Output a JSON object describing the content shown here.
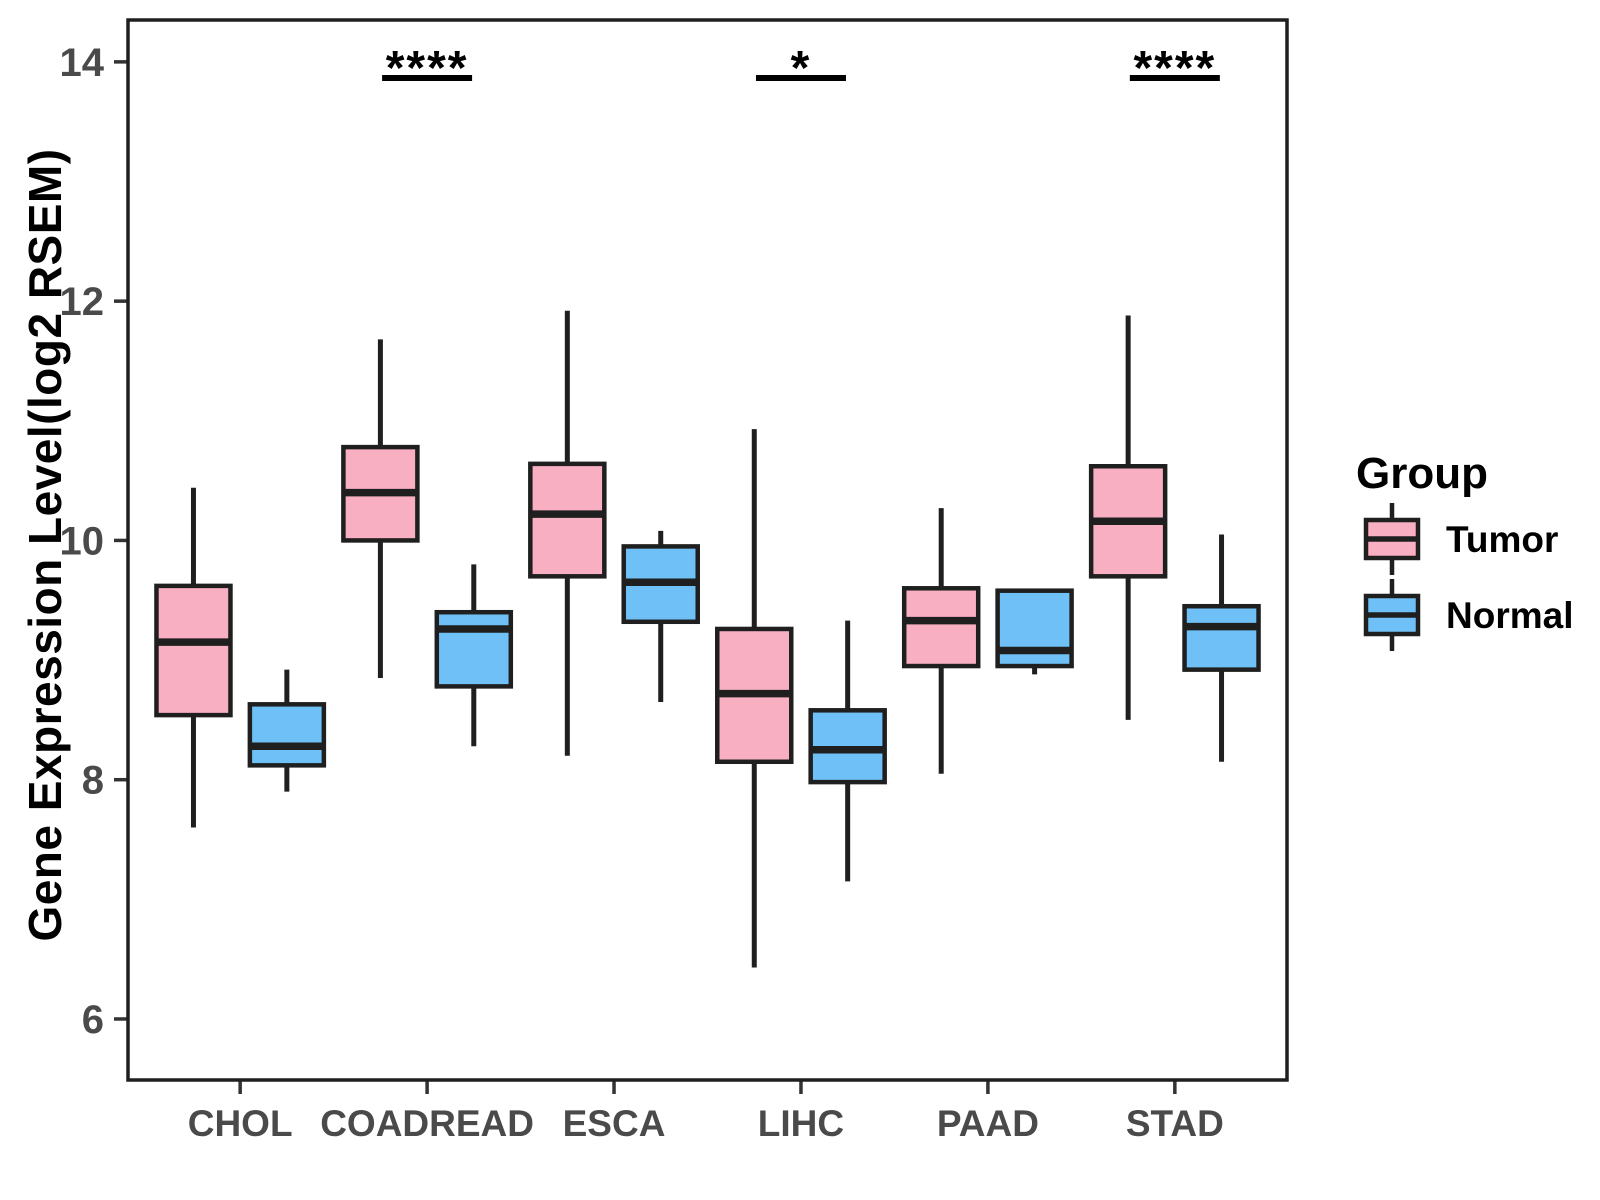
{
  "y_axis": {
    "title": "Gene Expression Level(log2 RSEM)",
    "ticks": [
      14,
      12,
      10,
      8,
      6
    ]
  },
  "x_axis": {
    "categories": [
      "CHOL",
      "COADREAD",
      "ESCA",
      "LIHC",
      "PAAD",
      "STAD"
    ]
  },
  "legend": {
    "title": "Group",
    "items": [
      {
        "label": "Tumor",
        "color": "#F9AFC2"
      },
      {
        "label": "Normal",
        "color": "#6FC0F7"
      }
    ]
  },
  "style": {
    "box_border": "#1F1F1F",
    "panel_border": "#1F1F1F",
    "tick_mark_color": "#333333",
    "tick_label_color": "#4A4A4A",
    "axis_title_color": "#000000",
    "annotation_color": "#000000",
    "background": "#FFFFFF"
  },
  "chart_data": {
    "type": "boxplot",
    "title": "",
    "xlabel": "",
    "ylabel": "Gene Expression Level(log2 RSEM)",
    "categories": [
      "CHOL",
      "COADREAD",
      "ESCA",
      "LIHC",
      "PAAD",
      "STAD"
    ],
    "ylim": [
      5.49,
      14.35
    ],
    "yticks": [
      6,
      8,
      10,
      12,
      14
    ],
    "grid": false,
    "legend_position": "right",
    "series": [
      {
        "name": "Tumor",
        "color": "#F9AFC2",
        "boxes": [
          {
            "min": 7.6,
            "q1": 8.54,
            "median": 9.15,
            "q3": 9.62,
            "max": 10.44
          },
          {
            "min": 8.85,
            "q1": 10.0,
            "median": 10.4,
            "q3": 10.78,
            "max": 11.68
          },
          {
            "min": 8.2,
            "q1": 9.7,
            "median": 10.22,
            "q3": 10.64,
            "max": 11.92
          },
          {
            "min": 6.43,
            "q1": 8.15,
            "median": 8.72,
            "q3": 9.26,
            "max": 10.93
          },
          {
            "min": 8.05,
            "q1": 8.95,
            "median": 9.33,
            "q3": 9.6,
            "max": 10.27
          },
          {
            "min": 8.5,
            "q1": 9.7,
            "median": 10.16,
            "q3": 10.62,
            "max": 11.88
          }
        ]
      },
      {
        "name": "Normal",
        "color": "#6FC0F7",
        "boxes": [
          {
            "min": 7.9,
            "q1": 8.12,
            "median": 8.28,
            "q3": 8.63,
            "max": 8.92
          },
          {
            "min": 8.28,
            "q1": 8.78,
            "median": 9.26,
            "q3": 9.4,
            "max": 9.8
          },
          {
            "min": 8.65,
            "q1": 9.32,
            "median": 9.65,
            "q3": 9.95,
            "max": 10.08
          },
          {
            "min": 7.15,
            "q1": 7.98,
            "median": 8.25,
            "q3": 8.58,
            "max": 9.33
          },
          {
            "min": 8.88,
            "q1": 8.95,
            "median": 9.08,
            "q3": 9.58,
            "max": 9.58
          },
          {
            "min": 8.15,
            "q1": 8.92,
            "median": 9.28,
            "q3": 9.45,
            "max": 10.05
          }
        ]
      }
    ],
    "significance": [
      {
        "category": "COADREAD",
        "label": "****"
      },
      {
        "category": "LIHC",
        "label": "*"
      },
      {
        "category": "STAD",
        "label": "****"
      }
    ]
  }
}
